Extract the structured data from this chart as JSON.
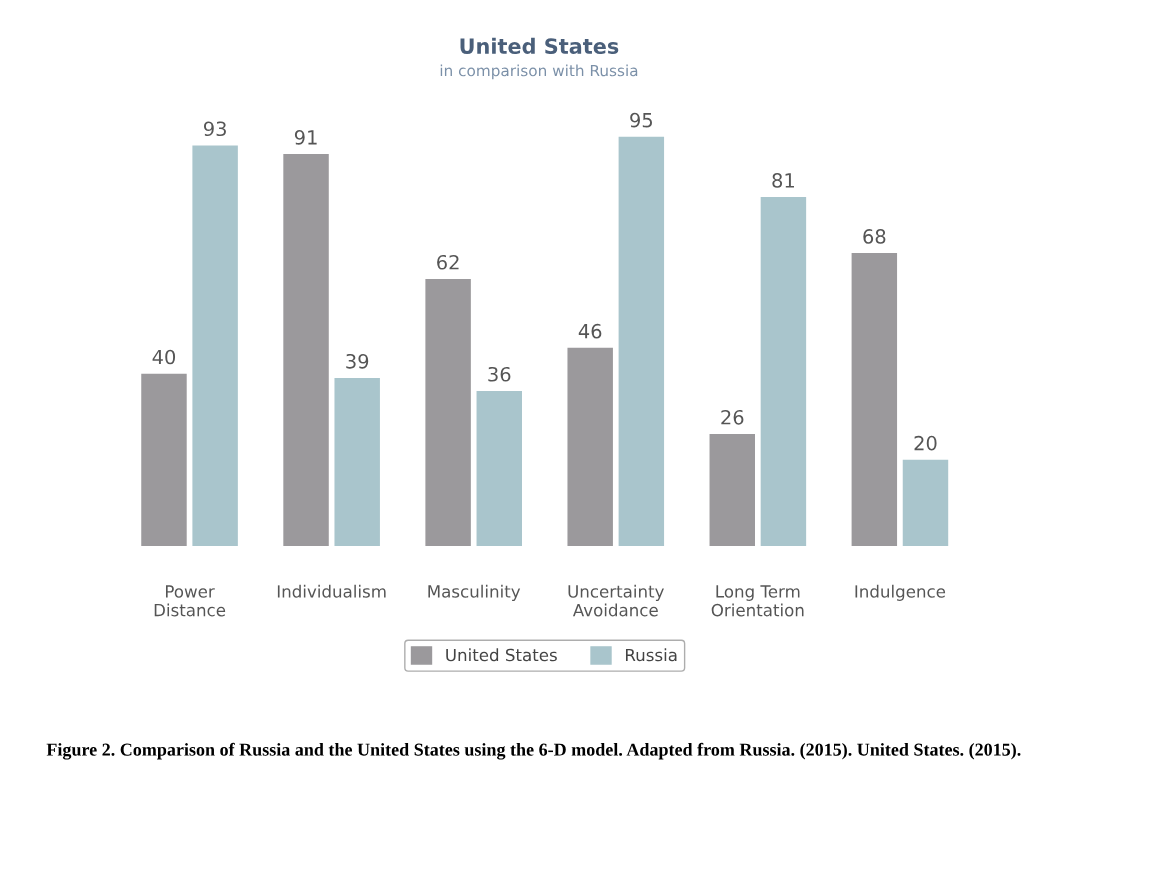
{
  "chart_data": {
    "type": "bar",
    "title": "United States",
    "subtitle": "in comparison with Russia",
    "categories": [
      "Power\nDistance",
      "Individualism",
      "Masculinity",
      "Uncertainty\nAvoidance",
      "Long Term\nOrientation",
      "Indulgence"
    ],
    "series": [
      {
        "name": "United States",
        "color": "#9b999c",
        "values": [
          40,
          91,
          62,
          46,
          26,
          68
        ]
      },
      {
        "name": "Russia",
        "color": "#a9c5cc",
        "values": [
          93,
          39,
          36,
          95,
          81,
          20
        ]
      }
    ],
    "data_labels": true,
    "legend": "bottom",
    "grid": false,
    "tick_labels": "x",
    "annotations": [
      "Figure 2. Comparison of Russia and the United States using the 6-D model. Adapted from Russia. (2015). United States. (2015)."
    ]
  }
}
